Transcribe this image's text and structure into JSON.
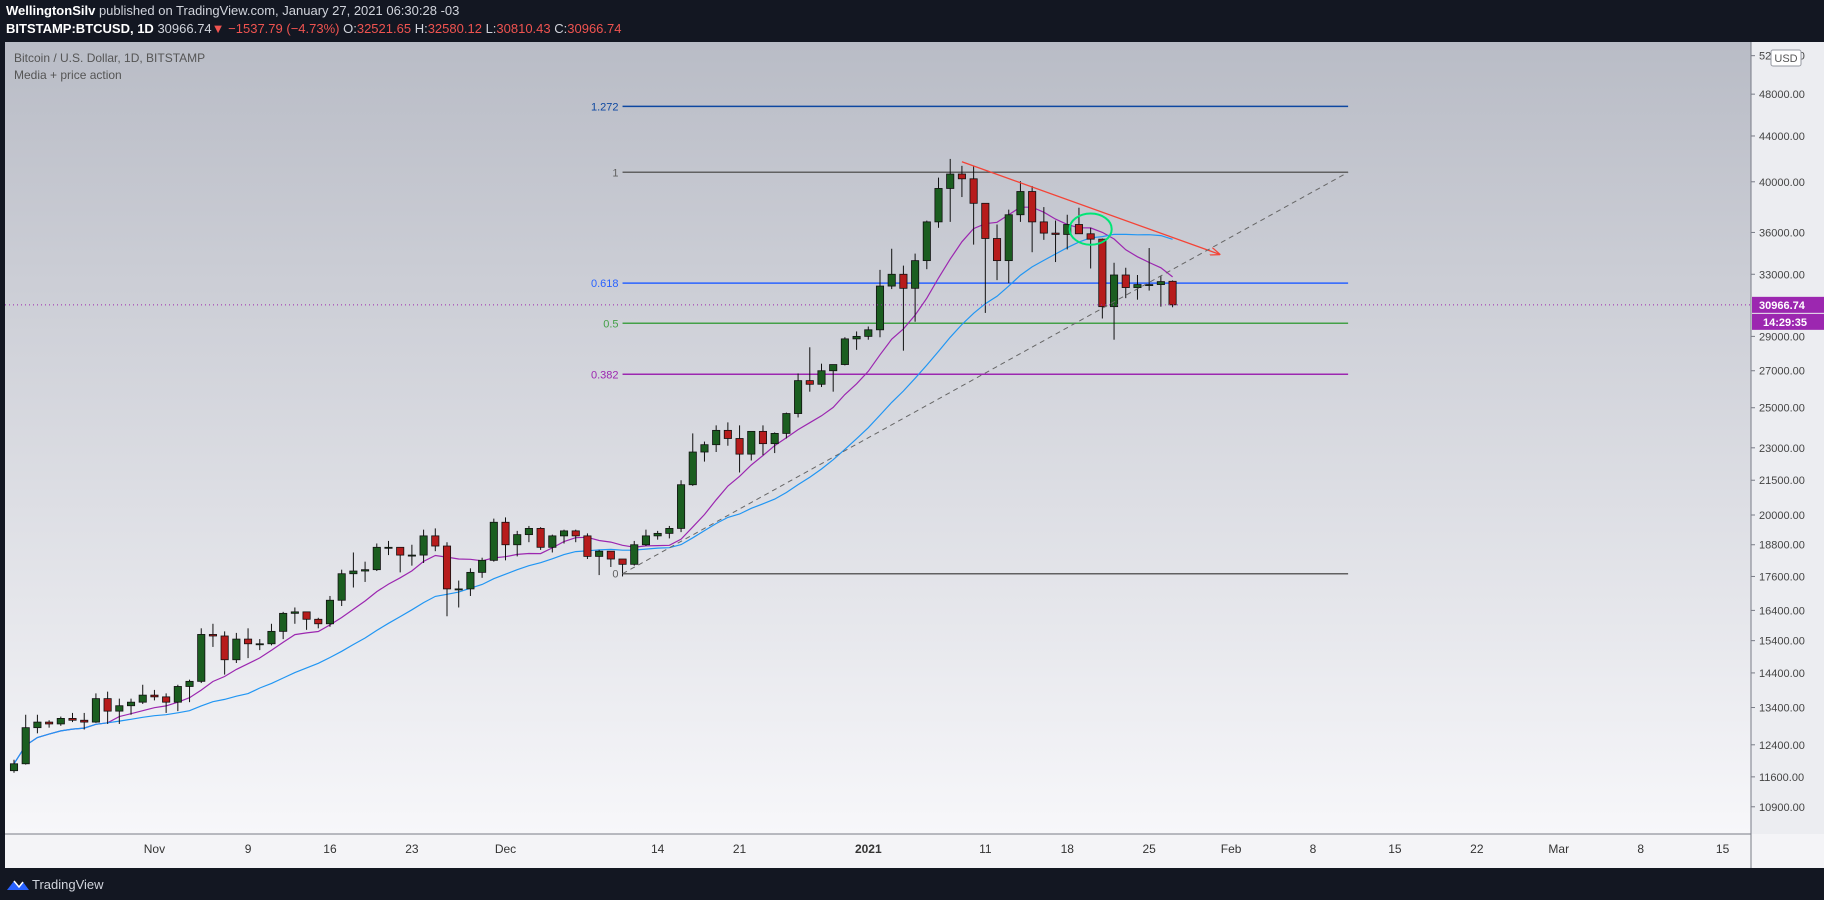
{
  "header": {
    "publisher": "WellingtonSilv",
    "published_text": "published on TradingView.com, January 27, 2021 06:30:28 -03",
    "symbol": "BITSTAMP:BTCUSD, 1D",
    "last": "30966.74",
    "change": "−1537.79 (−4.73%)",
    "o_label": "O:",
    "o_val": "32521.65",
    "h_label": "H:",
    "h_val": "32580.12",
    "l_label": "L:",
    "l_val": "30810.43",
    "c_label": "C:",
    "c_val": "30966.74"
  },
  "footer": {
    "brand": "TradingView"
  },
  "colors": {
    "up": "#1b5e20",
    "down": "#b71c1c",
    "ma_fast": "#9c27b0",
    "ma_slow": "#2196f3",
    "fib_1272": "#0d47a1",
    "fib_1": "#616161",
    "fib_0618": "#2962ff",
    "fib_05": "#43a047",
    "fib_0382": "#9c27b0",
    "fib_0": "#616161",
    "trendline": "#f44336",
    "price_badge": "#9c27b0"
  },
  "chart_data": {
    "type": "candlestick",
    "title": "Bitcoin / U.S. Dollar, 1D, BITSTAMP",
    "subtitle": "Media + price action",
    "currency_badge": "USD",
    "scale": "log",
    "ylim": [
      10300,
      53500
    ],
    "y_ticks": [
      52000,
      48000,
      44000,
      40000,
      36000,
      33000,
      29000,
      27000,
      25000,
      23000,
      21500,
      20000,
      18800,
      17600,
      16400,
      15400,
      14400,
      13400,
      12400,
      11600,
      10900
    ],
    "y_tick_labels": [
      "52000.00",
      "48000.00",
      "44000.00",
      "40000.00",
      "36000.00",
      "33000.00",
      "29000.00",
      "27000.00",
      "25000.00",
      "23000.00",
      "21500.00",
      "20000.00",
      "18800.00",
      "17600.00",
      "16400.00",
      "15400.00",
      "14400.00",
      "13400.00",
      "12400.00",
      "11600.00",
      "10900.00"
    ],
    "x_ticks": [
      {
        "label": "Nov",
        "date": "2020-11-01"
      },
      {
        "label": "9",
        "date": "2020-11-09"
      },
      {
        "label": "16",
        "date": "2020-11-16"
      },
      {
        "label": "23",
        "date": "2020-11-23"
      },
      {
        "label": "Dec",
        "date": "2020-12-01"
      },
      {
        "label": "14",
        "date": "2020-12-14"
      },
      {
        "label": "21",
        "date": "2020-12-21"
      },
      {
        "label": "2021",
        "date": "2021-01-01"
      },
      {
        "label": "11",
        "date": "2021-01-11"
      },
      {
        "label": "18",
        "date": "2021-01-18"
      },
      {
        "label": "25",
        "date": "2021-01-25"
      },
      {
        "label": "Feb",
        "date": "2021-02-01"
      },
      {
        "label": "8",
        "date": "2021-02-08"
      },
      {
        "label": "15",
        "date": "2021-02-15"
      },
      {
        "label": "22",
        "date": "2021-02-22"
      },
      {
        "label": "Mar",
        "date": "2021-03-01"
      },
      {
        "label": "8",
        "date": "2021-03-08"
      },
      {
        "label": "15",
        "date": "2021-03-15"
      }
    ],
    "x_range": [
      "2020-10-20",
      "2021-03-17"
    ],
    "last_price": "30966.74",
    "countdown": "14:29:35",
    "candles": [
      [
        "2020-10-20",
        11750,
        12020,
        11700,
        11920
      ],
      [
        "2020-10-21",
        11920,
        13200,
        11900,
        12850
      ],
      [
        "2020-10-22",
        12850,
        13200,
        12700,
        13000
      ],
      [
        "2020-10-23",
        13000,
        13050,
        12850,
        12950
      ],
      [
        "2020-10-24",
        12950,
        13150,
        12900,
        13100
      ],
      [
        "2020-10-25",
        13100,
        13250,
        13000,
        13050
      ],
      [
        "2020-10-26",
        13050,
        13250,
        12800,
        13000
      ],
      [
        "2020-10-27",
        13000,
        13800,
        12980,
        13650
      ],
      [
        "2020-10-28",
        13650,
        13850,
        12950,
        13300
      ],
      [
        "2020-10-29",
        13300,
        13650,
        12950,
        13450
      ],
      [
        "2020-10-30",
        13450,
        13650,
        13200,
        13550
      ],
      [
        "2020-10-31",
        13550,
        14050,
        13500,
        13750
      ],
      [
        "2020-11-01",
        13750,
        13900,
        13600,
        13700
      ],
      [
        "2020-11-02",
        13700,
        13800,
        13250,
        13550
      ],
      [
        "2020-11-03",
        13550,
        14050,
        13300,
        14000
      ],
      [
        "2020-11-04",
        14000,
        14200,
        13550,
        14150
      ],
      [
        "2020-11-05",
        14150,
        15800,
        14100,
        15600
      ],
      [
        "2020-11-06",
        15600,
        15950,
        15200,
        15550
      ],
      [
        "2020-11-07",
        15550,
        15700,
        14350,
        14800
      ],
      [
        "2020-11-08",
        14800,
        15650,
        14700,
        15450
      ],
      [
        "2020-11-09",
        15450,
        15800,
        14850,
        15300
      ],
      [
        "2020-11-10",
        15300,
        15450,
        15100,
        15300
      ],
      [
        "2020-11-11",
        15300,
        15950,
        15250,
        15700
      ],
      [
        "2020-11-12",
        15700,
        16350,
        15450,
        16300
      ],
      [
        "2020-11-13",
        16300,
        16500,
        15950,
        16350
      ],
      [
        "2020-11-14",
        16350,
        16350,
        15750,
        16100
      ],
      [
        "2020-11-15",
        16100,
        16150,
        15800,
        15950
      ],
      [
        "2020-11-16",
        15950,
        16900,
        15850,
        16750
      ],
      [
        "2020-11-17",
        16750,
        17850,
        16550,
        17700
      ],
      [
        "2020-11-18",
        17700,
        18500,
        17200,
        17800
      ],
      [
        "2020-11-19",
        17800,
        18150,
        17400,
        17850
      ],
      [
        "2020-11-20",
        17850,
        18850,
        17800,
        18700
      ],
      [
        "2020-11-21",
        18700,
        18950,
        18400,
        18700
      ],
      [
        "2020-11-22",
        18700,
        18700,
        17750,
        18400
      ],
      [
        "2020-11-23",
        18400,
        18800,
        18000,
        18400
      ],
      [
        "2020-11-24",
        18400,
        19400,
        18100,
        19150
      ],
      [
        "2020-11-25",
        19150,
        19450,
        18550,
        18750
      ],
      [
        "2020-11-26",
        18750,
        18900,
        16200,
        17150
      ],
      [
        "2020-11-27",
        17150,
        17450,
        16500,
        17150
      ],
      [
        "2020-11-28",
        17150,
        17900,
        16900,
        17750
      ],
      [
        "2020-11-29",
        17750,
        18300,
        17550,
        18200
      ],
      [
        "2020-11-30",
        18200,
        19850,
        18150,
        19700
      ],
      [
        "2020-12-01",
        19700,
        19900,
        18200,
        18800
      ],
      [
        "2020-12-02",
        18800,
        19350,
        18350,
        19200
      ],
      [
        "2020-12-03",
        19200,
        19550,
        18900,
        19450
      ],
      [
        "2020-12-04",
        19450,
        19500,
        18600,
        18700
      ],
      [
        "2020-12-05",
        18700,
        19200,
        18500,
        19150
      ],
      [
        "2020-12-06",
        19150,
        19400,
        18850,
        19350
      ],
      [
        "2020-12-07",
        19350,
        19400,
        18900,
        19150
      ],
      [
        "2020-12-08",
        19150,
        19250,
        18250,
        18350
      ],
      [
        "2020-12-09",
        18350,
        18600,
        17650,
        18550
      ],
      [
        "2020-12-10",
        18550,
        18550,
        17950,
        18250
      ],
      [
        "2020-12-11",
        18250,
        18250,
        17600,
        18050
      ],
      [
        "2020-12-12",
        18050,
        18950,
        18000,
        18800
      ],
      [
        "2020-12-13",
        18800,
        19400,
        18750,
        19150
      ],
      [
        "2020-12-14",
        19150,
        19350,
        19000,
        19250
      ],
      [
        "2020-12-15",
        19250,
        19550,
        19050,
        19450
      ],
      [
        "2020-12-16",
        19450,
        21500,
        19300,
        21300
      ],
      [
        "2020-12-17",
        21300,
        23700,
        21250,
        22800
      ],
      [
        "2020-12-18",
        22800,
        23300,
        22350,
        23150
      ],
      [
        "2020-12-19",
        23150,
        24100,
        22800,
        23850
      ],
      [
        "2020-12-20",
        23850,
        24250,
        23100,
        23450
      ],
      [
        "2020-12-21",
        23450,
        24100,
        21850,
        22700
      ],
      [
        "2020-12-22",
        22700,
        23800,
        22400,
        23800
      ],
      [
        "2020-12-23",
        23800,
        24100,
        22650,
        23200
      ],
      [
        "2020-12-24",
        23200,
        23750,
        22750,
        23700
      ],
      [
        "2020-12-25",
        23700,
        24750,
        23450,
        24700
      ],
      [
        "2020-12-26",
        24700,
        26850,
        24500,
        26450
      ],
      [
        "2020-12-27",
        26450,
        28350,
        25850,
        26250
      ],
      [
        "2020-12-28",
        26250,
        27400,
        26100,
        27000
      ],
      [
        "2020-12-29",
        27000,
        27350,
        25850,
        27350
      ],
      [
        "2020-12-30",
        27350,
        28950,
        27300,
        28850
      ],
      [
        "2020-12-31",
        28850,
        29300,
        28200,
        29000
      ],
      [
        "2021-01-01",
        29000,
        29600,
        28800,
        29400
      ],
      [
        "2021-01-02",
        29400,
        33300,
        28950,
        32200
      ],
      [
        "2021-01-03",
        32200,
        34800,
        32000,
        33000
      ],
      [
        "2021-01-04",
        33000,
        33600,
        28150,
        32050
      ],
      [
        "2021-01-05",
        32050,
        34450,
        29900,
        33950
      ],
      [
        "2021-01-06",
        33950,
        36900,
        33350,
        36800
      ],
      [
        "2021-01-07",
        36800,
        40350,
        36350,
        39450
      ],
      [
        "2021-01-08",
        39450,
        41950,
        36800,
        40650
      ],
      [
        "2021-01-09",
        40650,
        41350,
        38750,
        40250
      ],
      [
        "2021-01-10",
        40250,
        41350,
        35100,
        38250
      ],
      [
        "2021-01-11",
        38250,
        38250,
        30450,
        35550
      ],
      [
        "2021-01-12",
        35550,
        36600,
        32600,
        33950
      ],
      [
        "2021-01-13",
        33950,
        37750,
        32400,
        37350
      ],
      [
        "2021-01-14",
        37350,
        40050,
        36800,
        39200
      ],
      [
        "2021-01-15",
        39200,
        39650,
        34550,
        36800
      ],
      [
        "2021-01-16",
        36800,
        37950,
        35450,
        35950
      ],
      [
        "2021-01-17",
        35950,
        36900,
        33850,
        35850
      ],
      [
        "2021-01-18",
        35850,
        37350,
        34750,
        36600
      ],
      [
        "2021-01-19",
        36600,
        37900,
        35900,
        35900
      ],
      [
        "2021-01-20",
        35900,
        36350,
        33400,
        35500
      ],
      [
        "2021-01-21",
        35500,
        35550,
        30100,
        30850
      ],
      [
        "2021-01-22",
        30850,
        33800,
        28800,
        32950
      ],
      [
        "2021-01-23",
        32950,
        33450,
        31400,
        32100
      ],
      [
        "2021-01-24",
        32100,
        32950,
        31300,
        32300
      ],
      [
        "2021-01-25",
        32300,
        34850,
        31900,
        32300
      ],
      [
        "2021-01-26",
        32300,
        32900,
        30850,
        32500
      ],
      [
        "2021-01-27",
        32521.65,
        32580.12,
        30810.43,
        30966.74
      ]
    ],
    "fib_levels": [
      {
        "label": "1.272",
        "value": 46800
      },
      {
        "label": "1",
        "value": 40800
      },
      {
        "label": "0.618",
        "value": 32400
      },
      {
        "label": "0.5",
        "value": 29800
      },
      {
        "label": "0.382",
        "value": 26800
      },
      {
        "label": "0",
        "value": 17700
      }
    ],
    "fib_range_dates": [
      "2020-12-11",
      "2021-02-11"
    ],
    "trendlines": [
      {
        "kind": "arrow",
        "from": [
          "2021-01-09",
          41700
        ],
        "to": [
          "2021-01-31",
          34400
        ]
      },
      {
        "kind": "dashed",
        "from": [
          "2020-12-11",
          17700
        ],
        "to": [
          "2021-02-11",
          40800
        ]
      }
    ],
    "ellipse_annotation": {
      "center": [
        "2021-01-20",
        36250
      ],
      "date_span": 2,
      "price_span": [
        35100,
        37450
      ]
    }
  }
}
